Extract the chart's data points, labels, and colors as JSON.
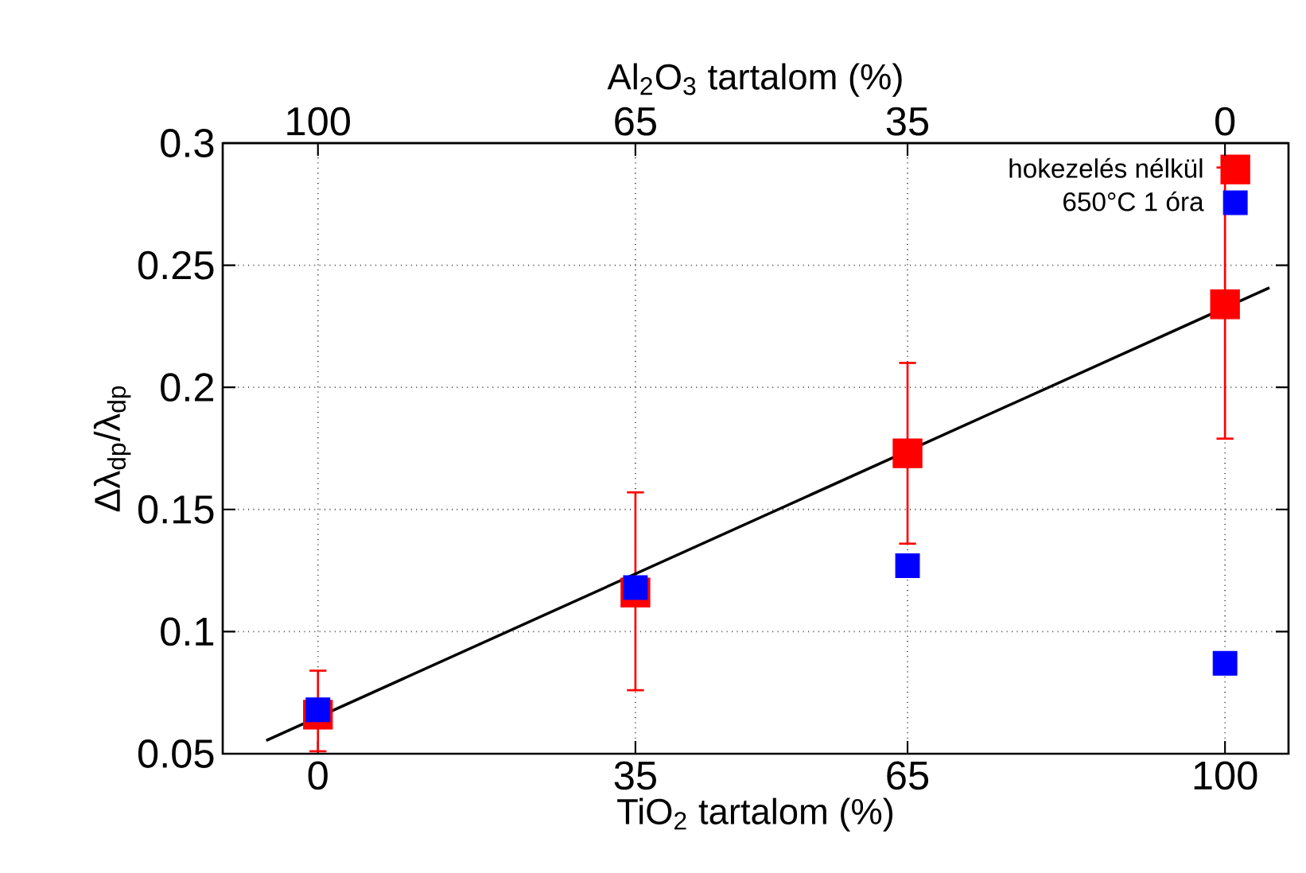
{
  "chart_data": {
    "type": "scatter",
    "xlabel": "TiO$_{2}$ tartalom (%)",
    "x2label": "Al$_{2}$O$_{3}$ tartalom (%)",
    "ylabel": "Δλ$_{dp}$/λ$_{dp}$",
    "xlim": [
      -10.5,
      107
    ],
    "xticks": [
      0,
      35,
      65,
      100
    ],
    "x2lim": [
      110.5,
      -7
    ],
    "x2ticks": [
      100,
      65,
      35,
      0
    ],
    "ylim": [
      0.05,
      0.3
    ],
    "yticks": [
      0.05,
      0.1,
      0.15,
      0.2,
      0.25,
      0.3
    ],
    "grid": true,
    "legend": "top right",
    "marker": "square",
    "series": [
      {
        "name": "hokezelés nélkül",
        "color": "#ff0000",
        "x": [
          0,
          35,
          65,
          100
        ],
        "values": [
          0.066,
          0.116,
          0.173,
          0.234
        ],
        "errors": [
          [
            0.051,
            0.084
          ],
          [
            0.076,
            0.157
          ],
          [
            0.136,
            0.21
          ],
          [
            0.179,
            0.29
          ]
        ]
      },
      {
        "name": "650°C 1 óra",
        "color": "#0000ff",
        "x": [
          0,
          35,
          65,
          100
        ],
        "values": [
          0.068,
          0.118,
          0.127,
          0.087
        ]
      },
      {
        "type": "line",
        "color": "#000000",
        "marker": "none",
        "x": [
          -5.7,
          104.9
        ],
        "values": [
          0.0554,
          0.2408
        ]
      }
    ]
  }
}
